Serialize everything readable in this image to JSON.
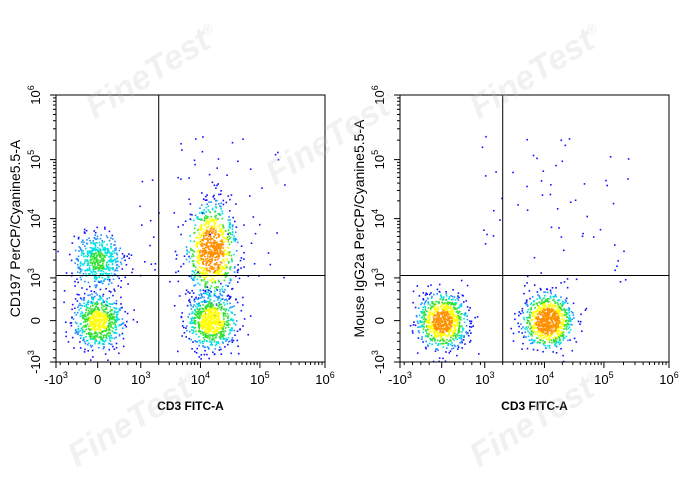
{
  "watermark": {
    "text": "FineTest",
    "mark": "®"
  },
  "colors": {
    "density_scale": [
      "#1010ff",
      "#1e90ff",
      "#00e0e0",
      "#30e030",
      "#ffff00",
      "#ff9000",
      "#ff0000"
    ],
    "axis": "#000000",
    "gate": "#000000"
  },
  "chart_data": [
    {
      "type": "scatter",
      "subtype": "flow-cytometry-pseudocolor-density",
      "xlabel": "CD3 FITC-A",
      "ylabel": "CD197 PerCP/Cyanine5.5-A",
      "x_scale": "biexponential",
      "y_scale": "biexponential",
      "xlim": [
        -1000,
        1000000
      ],
      "ylim": [
        -1000,
        1000000
      ],
      "x_ticks": [
        {
          "value": -1000,
          "base": "-10",
          "exp": "3"
        },
        {
          "value": 0,
          "base": "0",
          "exp": ""
        },
        {
          "value": 1000,
          "base": "10",
          "exp": "3"
        },
        {
          "value": 10000,
          "base": "10",
          "exp": "4"
        },
        {
          "value": 100000,
          "base": "10",
          "exp": "5"
        },
        {
          "value": 1000000,
          "base": "10",
          "exp": "6"
        }
      ],
      "y_ticks": [
        {
          "value": -1000,
          "base": "-10",
          "exp": "3"
        },
        {
          "value": 0,
          "base": "0",
          "exp": ""
        },
        {
          "value": 1000,
          "base": "10",
          "exp": "3"
        },
        {
          "value": 10000,
          "base": "10",
          "exp": "4"
        },
        {
          "value": 100000,
          "base": "10",
          "exp": "5"
        },
        {
          "value": 1000000,
          "base": "10",
          "exp": "6"
        }
      ],
      "quadrant_gate": {
        "x": 2000,
        "y": 1100
      },
      "populations": [
        {
          "x": 0,
          "y": 2000,
          "relative_density": 0.55
        },
        {
          "x": 0,
          "y": 0,
          "relative_density": 0.75
        },
        {
          "x": 15000,
          "y": 3000,
          "relative_density": 1.0
        },
        {
          "x": 15000,
          "y": 0,
          "relative_density": 0.8
        }
      ],
      "grid": false
    },
    {
      "type": "scatter",
      "subtype": "flow-cytometry-pseudocolor-density",
      "xlabel": "CD3 FITC-A",
      "ylabel": "Mouse IgG2a PerCP/Cyanine5.5-A",
      "x_scale": "biexponential",
      "y_scale": "biexponential",
      "xlim": [
        -1000,
        1000000
      ],
      "ylim": [
        -1000,
        1000000
      ],
      "x_ticks": [
        {
          "value": -1000,
          "base": "-10",
          "exp": "3"
        },
        {
          "value": 0,
          "base": "0",
          "exp": ""
        },
        {
          "value": 1000,
          "base": "10",
          "exp": "3"
        },
        {
          "value": 10000,
          "base": "10",
          "exp": "4"
        },
        {
          "value": 100000,
          "base": "10",
          "exp": "5"
        },
        {
          "value": 1000000,
          "base": "10",
          "exp": "6"
        }
      ],
      "y_ticks": [
        {
          "value": -1000,
          "base": "-10",
          "exp": "3"
        },
        {
          "value": 0,
          "base": "0",
          "exp": ""
        },
        {
          "value": 1000,
          "base": "10",
          "exp": "3"
        },
        {
          "value": 10000,
          "base": "10",
          "exp": "4"
        },
        {
          "value": 100000,
          "base": "10",
          "exp": "5"
        },
        {
          "value": 1000000,
          "base": "10",
          "exp": "6"
        }
      ],
      "quadrant_gate": {
        "x": 2000,
        "y": 1100
      },
      "populations": [
        {
          "x": 0,
          "y": 0,
          "relative_density": 0.95
        },
        {
          "x": 11000,
          "y": 0,
          "relative_density": 1.0
        }
      ],
      "grid": false
    }
  ]
}
